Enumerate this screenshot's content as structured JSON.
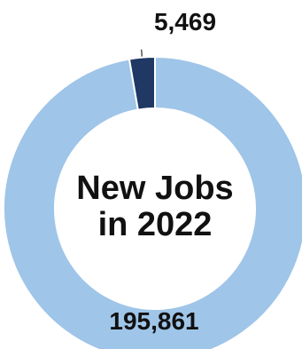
{
  "chart_data": {
    "type": "pie",
    "style": "donut",
    "title_lines": [
      "New Jobs",
      "in 2022"
    ],
    "slices": [
      {
        "label": "195,861",
        "value": 195861,
        "color": "#9fc5e8"
      },
      {
        "label": "5,469",
        "value": 5469,
        "color": "#1f3864"
      }
    ],
    "legend": "none"
  }
}
